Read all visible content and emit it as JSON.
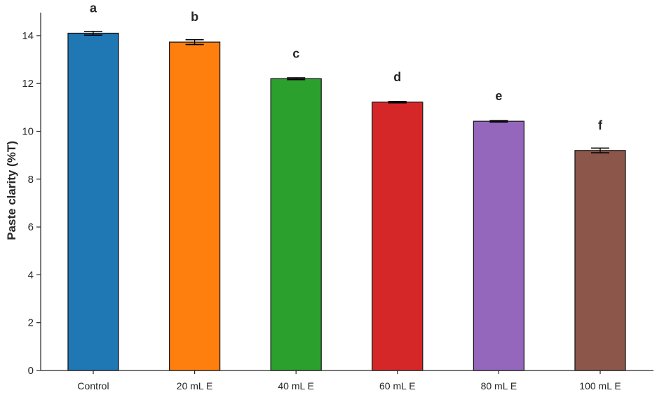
{
  "chart_data": {
    "type": "bar",
    "ylabel": "Paste clarity (%T)",
    "xlabel": "",
    "ylim": [
      0,
      15
    ],
    "yticks": [
      0,
      2,
      4,
      6,
      8,
      10,
      12,
      14
    ],
    "categories": [
      "Control",
      "20 mL E",
      "40 mL E",
      "60 mL E",
      "80 mL E",
      "100 mL E"
    ],
    "values": [
      14.1,
      13.73,
      12.2,
      11.22,
      10.42,
      9.2
    ],
    "errors": [
      0.08,
      0.1,
      0.04,
      0.03,
      0.03,
      0.1
    ],
    "significance_letters": [
      "a",
      "b",
      "c",
      "d",
      "e",
      "f"
    ],
    "colors": [
      "#1f77b4",
      "#ff7f0e",
      "#2ca02c",
      "#d62728",
      "#9467bd",
      "#8c564b"
    ],
    "grid": false,
    "legend": "none"
  }
}
